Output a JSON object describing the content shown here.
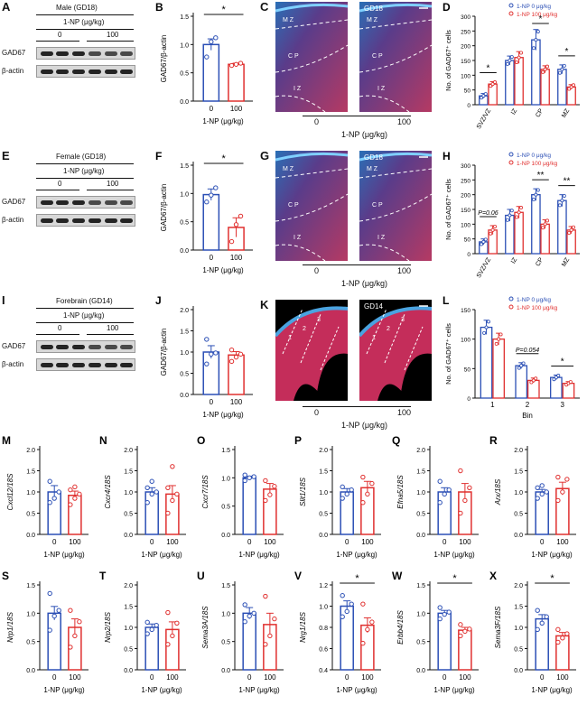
{
  "wb": {
    "A": {
      "panel": "A",
      "group": "Male (GD18)",
      "treat": "1-NP (μg/kg)",
      "dose0": "0",
      "dose100": "100",
      "rows": [
        "GAD67",
        "β-actin"
      ]
    },
    "E": {
      "panel": "E",
      "group": "Female (GD18)",
      "treat": "1-NP (μg/kg)",
      "dose0": "0",
      "dose100": "100",
      "rows": [
        "GAD67",
        "β-actin"
      ]
    },
    "I": {
      "panel": "I",
      "group": "Forebrain (GD14)",
      "treat": "1-NP (μg/kg)",
      "dose0": "0",
      "dose100": "100",
      "rows": [
        "GAD67",
        "β-actin"
      ]
    }
  },
  "micro": {
    "C": {
      "panel": "C",
      "ctrl_layers": [
        "M Z",
        "C P",
        "I Z"
      ],
      "trt_label": "GD18",
      "trt_layers": [
        "M Z",
        "C P",
        "I Z"
      ],
      "x0": "0",
      "x100": "100",
      "xtitle": "1-NP (μg/kg)"
    },
    "G": {
      "panel": "G",
      "ctrl_layers": [
        "M Z",
        "C P",
        "I Z"
      ],
      "trt_label": "GD18",
      "trt_layers": [
        "M Z",
        "C P",
        "I Z"
      ],
      "x0": "0",
      "x100": "100",
      "xtitle": "1-NP (μg/kg)"
    },
    "K": {
      "panel": "K",
      "ctrl_layers": [
        "1",
        "2",
        "3"
      ],
      "trt_label": "GD14",
      "trt_layers": [
        "1",
        "2",
        "3"
      ],
      "x0": "0",
      "x100": "100",
      "xtitle": "1-NP (μg/kg)"
    }
  },
  "colors": {
    "control": "#2b4fb5",
    "treated": "#e0302f"
  },
  "chart_data": [
    {
      "panel": "B",
      "type": "bar",
      "ylabel": "GAD67/β-actin",
      "xlabel": "1-NP (μg/kg)",
      "categories": [
        "0",
        "100"
      ],
      "values": [
        1.0,
        0.65
      ],
      "errors": [
        0.1,
        0.02
      ],
      "points": [
        [
          0.78,
          1.05,
          1.12
        ],
        [
          0.63,
          0.65,
          0.67
        ]
      ],
      "ylim": [
        0,
        1.5
      ],
      "yticks": [
        "0.0",
        "0.5",
        "1.0",
        "1.5"
      ],
      "sig": "*"
    },
    {
      "panel": "F",
      "type": "bar",
      "ylabel": "GAD67/β-actin",
      "xlabel": "1-NP (μg/kg)",
      "categories": [
        "0",
        "100"
      ],
      "values": [
        0.98,
        0.4
      ],
      "errors": [
        0.1,
        0.17
      ],
      "points": [
        [
          0.85,
          0.97,
          1.1
        ],
        [
          0.15,
          0.45,
          0.6
        ]
      ],
      "ylim": [
        0,
        1.5
      ],
      "yticks": [
        "0.0",
        "0.5",
        "1.0",
        "1.5"
      ],
      "sig": "*"
    },
    {
      "panel": "J",
      "type": "bar",
      "ylabel": "GAD67/β-actin",
      "xlabel": "1-NP (μg/kg)",
      "categories": [
        "0",
        "100"
      ],
      "values": [
        1.0,
        0.93
      ],
      "errors": [
        0.15,
        0.08
      ],
      "points": [
        [
          0.72,
          0.95,
          0.98,
          1.3
        ],
        [
          0.78,
          0.88,
          0.95,
          1.05
        ]
      ],
      "ylim": [
        0,
        2.0
      ],
      "yticks": [
        "0.0",
        "0.5",
        "1.0",
        "1.5",
        "2.0"
      ],
      "sig": ""
    },
    {
      "panel": "D",
      "type": "bar",
      "ylabel": "No. of GAD67⁺ cells",
      "xlabel": "",
      "categories": [
        "SVZ/VZ",
        "IZ",
        "CP",
        "MZ"
      ],
      "series": [
        {
          "name": "1-NP 0 μg/kg",
          "values": [
            30,
            150,
            220,
            120
          ],
          "errors": [
            8,
            15,
            35,
            15
          ]
        },
        {
          "name": "1-NP 100 μg/kg",
          "values": [
            70,
            160,
            120,
            60
          ],
          "errors": [
            8,
            20,
            12,
            8
          ]
        }
      ],
      "ylim": [
        0,
        300
      ],
      "yticks": [
        "0",
        "50",
        "100",
        "150",
        "200",
        "250",
        "300"
      ],
      "sig": [
        {
          "cat": 0,
          "label": "*"
        },
        {
          "cat": 2,
          "label": "*"
        },
        {
          "cat": 3,
          "label": "*"
        }
      ]
    },
    {
      "panel": "H",
      "type": "bar",
      "ylabel": "No. of GAD67⁺ cells",
      "xlabel": "",
      "categories": [
        "SVZ/VZ",
        "IZ",
        "CP",
        "MZ"
      ],
      "series": [
        {
          "name": "1-NP 0 μg/kg",
          "values": [
            40,
            130,
            200,
            180
          ],
          "errors": [
            10,
            20,
            20,
            20
          ]
        },
        {
          "name": "1-NP 100 μg/kg",
          "values": [
            80,
            140,
            100,
            80
          ],
          "errors": [
            15,
            20,
            15,
            12
          ]
        }
      ],
      "ylim": [
        0,
        300
      ],
      "yticks": [
        "0",
        "50",
        "100",
        "150",
        "200",
        "250",
        "300"
      ],
      "sig": [
        {
          "cat": 0,
          "label": "P=0.06"
        },
        {
          "cat": 2,
          "label": "**"
        },
        {
          "cat": 3,
          "label": "**"
        }
      ]
    },
    {
      "panel": "L",
      "type": "bar",
      "ylabel": "No. of GAD67⁺ cells",
      "xlabel": "Bin",
      "categories": [
        "1",
        "2",
        "3"
      ],
      "series": [
        {
          "name": "1-NP 0 μg/kg",
          "values": [
            120,
            55,
            35
          ],
          "errors": [
            12,
            5,
            4
          ]
        },
        {
          "name": "1-NP 100 μg/kg",
          "values": [
            100,
            30,
            25
          ],
          "errors": [
            10,
            4,
            3
          ]
        }
      ],
      "ylim": [
        0,
        150
      ],
      "yticks": [
        "0",
        "50",
        "100",
        "150"
      ],
      "sig": [
        {
          "cat": 1,
          "label": "P=0.054"
        },
        {
          "cat": 2,
          "label": "*"
        }
      ]
    },
    {
      "panel": "M",
      "type": "bar",
      "ylabel": "Cxcl12/18S",
      "xlabel": "1-NP (μg/kg)",
      "categories": [
        "0",
        "100"
      ],
      "values": [
        1.0,
        0.92
      ],
      "errors": [
        0.15,
        0.1
      ],
      "points": [
        [
          0.75,
          0.85,
          1.0,
          1.25
        ],
        [
          0.7,
          0.85,
          0.95,
          1.05,
          1.12
        ]
      ],
      "ylim": [
        0,
        2.0
      ],
      "yticks": [
        "0.0",
        "0.5",
        "1.0",
        "1.5",
        "2.0"
      ],
      "sig": ""
    },
    {
      "panel": "N",
      "type": "bar",
      "ylabel": "Cxcr4/18S",
      "xlabel": "1-NP (μg/kg)",
      "categories": [
        "0",
        "100"
      ],
      "values": [
        1.0,
        0.95
      ],
      "errors": [
        0.1,
        0.2
      ],
      "points": [
        [
          0.75,
          0.95,
          1.0,
          1.1,
          1.25
        ],
        [
          0.5,
          0.8,
          0.95,
          1.1,
          1.6
        ]
      ],
      "ylim": [
        0,
        2.0
      ],
      "yticks": [
        "0.0",
        "0.5",
        "1.0",
        "1.5",
        "2.0"
      ],
      "sig": ""
    },
    {
      "panel": "O",
      "type": "bar",
      "ylabel": "Cxcr7/18S",
      "xlabel": "1-NP (μg/kg)",
      "categories": [
        "0",
        "100"
      ],
      "values": [
        1.0,
        0.8
      ],
      "errors": [
        0.03,
        0.1
      ],
      "points": [
        [
          0.95,
          1.0,
          1.02,
          1.05
        ],
        [
          0.6,
          0.7,
          0.85,
          0.95
        ]
      ],
      "ylim": [
        0,
        1.5
      ],
      "yticks": [
        "0.0",
        "0.5",
        "1.0",
        "1.5"
      ],
      "sig": ""
    },
    {
      "panel": "P",
      "type": "bar",
      "ylabel": "Slit1/18S",
      "xlabel": "1-NP (μg/kg)",
      "categories": [
        "0",
        "100"
      ],
      "values": [
        1.0,
        1.1
      ],
      "errors": [
        0.08,
        0.15
      ],
      "points": [
        [
          0.85,
          0.95,
          1.05,
          1.12
        ],
        [
          0.75,
          0.95,
          1.2,
          1.35
        ]
      ],
      "ylim": [
        0,
        2.0
      ],
      "yticks": [
        "0.0",
        "0.5",
        "1.0",
        "1.5",
        "2.0"
      ],
      "sig": ""
    },
    {
      "panel": "Q",
      "type": "bar",
      "ylabel": "Efna5/18S",
      "xlabel": "1-NP (μg/kg)",
      "categories": [
        "0",
        "100"
      ],
      "values": [
        1.0,
        1.0
      ],
      "errors": [
        0.1,
        0.2
      ],
      "points": [
        [
          0.75,
          0.95,
          1.05,
          1.25
        ],
        [
          0.5,
          0.8,
          1.1,
          1.5
        ]
      ],
      "ylim": [
        0,
        2.0
      ],
      "yticks": [
        "0.0",
        "0.5",
        "1.0",
        "1.5",
        "2.0"
      ],
      "sig": ""
    },
    {
      "panel": "R",
      "type": "bar",
      "ylabel": "Arx/18S",
      "xlabel": "1-NP (μg/kg)",
      "categories": [
        "0",
        "100"
      ],
      "values": [
        1.0,
        1.08
      ],
      "errors": [
        0.06,
        0.15
      ],
      "points": [
        [
          0.85,
          0.95,
          1.0,
          1.1,
          1.15
        ],
        [
          0.8,
          1.0,
          1.3,
          1.35
        ]
      ],
      "ylim": [
        0,
        2.0
      ],
      "yticks": [
        "0.0",
        "0.5",
        "1.0",
        "1.5",
        "2.0"
      ],
      "sig": ""
    },
    {
      "panel": "S",
      "type": "bar",
      "ylabel": "Nrp1/18S",
      "xlabel": "1-NP (μg/kg)",
      "categories": [
        "0",
        "100"
      ],
      "values": [
        1.0,
        0.75
      ],
      "errors": [
        0.12,
        0.15
      ],
      "points": [
        [
          0.7,
          0.95,
          1.05,
          1.35
        ],
        [
          0.4,
          0.6,
          0.85,
          1.05
        ]
      ],
      "ylim": [
        0,
        1.5
      ],
      "yticks": [
        "0.0",
        "0.5",
        "1.0",
        "1.5"
      ],
      "sig": ""
    },
    {
      "panel": "T",
      "type": "bar",
      "ylabel": "Nrp2/18S",
      "xlabel": "1-NP (μg/kg)",
      "categories": [
        "0",
        "100"
      ],
      "values": [
        1.0,
        0.95
      ],
      "errors": [
        0.08,
        0.18
      ],
      "points": [
        [
          0.85,
          0.95,
          1.05,
          1.12
        ],
        [
          0.6,
          0.8,
          1.1,
          1.35
        ]
      ],
      "ylim": [
        0,
        2.0
      ],
      "yticks": [
        "0.0",
        "0.5",
        "1.0",
        "1.5",
        "2.0"
      ],
      "sig": ""
    },
    {
      "panel": "U",
      "type": "bar",
      "ylabel": "Sema3A/18S",
      "xlabel": "1-NP (μg/kg)",
      "categories": [
        "0",
        "100"
      ],
      "values": [
        1.0,
        0.8
      ],
      "errors": [
        0.1,
        0.2
      ],
      "points": [
        [
          0.85,
          0.95,
          1.0,
          1.15
        ],
        [
          0.45,
          0.6,
          0.9,
          1.3
        ]
      ],
      "ylim": [
        0,
        1.5
      ],
      "yticks": [
        "0.0",
        "0.5",
        "1.0",
        "1.5"
      ],
      "sig": ""
    },
    {
      "panel": "V",
      "type": "bar",
      "ylabel": "Nrg1/18S",
      "xlabel": "1-NP (μg/kg)",
      "categories": [
        "0",
        "100"
      ],
      "values": [
        1.0,
        0.82
      ],
      "errors": [
        0.05,
        0.07
      ],
      "points": [
        [
          0.9,
          0.95,
          1.02,
          1.1
        ],
        [
          0.65,
          0.78,
          0.85,
          1.02
        ]
      ],
      "ylim": [
        0.4,
        1.2
      ],
      "yticks": [
        "0.4",
        "0.6",
        "0.8",
        "1.0",
        "1.2"
      ],
      "sig": "*"
    },
    {
      "panel": "W",
      "type": "bar",
      "ylabel": "Erbb4/18S",
      "xlabel": "1-NP (μg/kg)",
      "categories": [
        "0",
        "100"
      ],
      "values": [
        1.0,
        0.7
      ],
      "errors": [
        0.05,
        0.05
      ],
      "points": [
        [
          0.9,
          0.98,
          1.02,
          1.1
        ],
        [
          0.6,
          0.68,
          0.72,
          0.8
        ]
      ],
      "ylim": [
        0,
        1.5
      ],
      "yticks": [
        "0.0",
        "0.5",
        "1.0",
        "1.5"
      ],
      "sig": "*"
    },
    {
      "panel": "X",
      "type": "bar",
      "ylabel": "Sema3F/18S",
      "xlabel": "1-NP (μg/kg)",
      "categories": [
        "0",
        "100"
      ],
      "values": [
        1.2,
        0.8
      ],
      "errors": [
        0.1,
        0.08
      ],
      "points": [
        [
          0.95,
          1.1,
          1.25,
          1.4
        ],
        [
          0.65,
          0.75,
          0.85,
          0.95
        ]
      ],
      "ylim": [
        0,
        2.0
      ],
      "yticks": [
        "0.0",
        "0.5",
        "1.0",
        "1.5",
        "2.0"
      ],
      "sig": "*"
    }
  ]
}
